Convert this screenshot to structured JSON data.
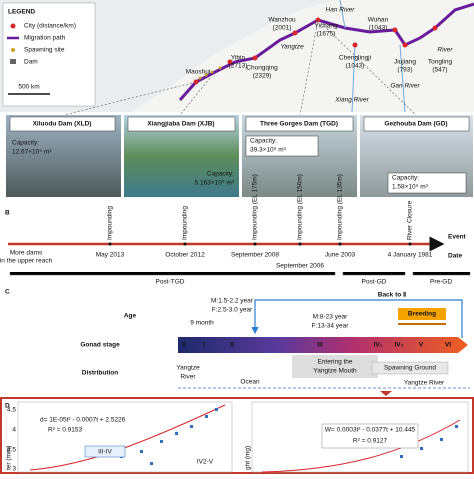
{
  "map": {
    "legend": {
      "title": "LEGEND",
      "items": [
        "City (distance/km)",
        "Migration path",
        "Spawning site",
        "Dam"
      ],
      "scale": "500 km"
    },
    "cities": [
      {
        "name": "Maoshui"
      },
      {
        "name": "Yibin",
        "distance": "(2713)"
      },
      {
        "name": "Chongqing",
        "distance": "(2329)"
      },
      {
        "name": "Wanzhou",
        "distance": "(2001)"
      },
      {
        "name": "Yichang",
        "distance": "(1675)"
      },
      {
        "name": "Wuhan",
        "distance": "(1043)"
      },
      {
        "name": "Chenglingji",
        "distance": "(1043)"
      },
      {
        "name": "Jiujiang",
        "distance": "(793)"
      },
      {
        "name": "Tongling",
        "distance": "(547)"
      }
    ],
    "rivers": [
      "Han River",
      "Yangtze",
      "Xiang River",
      "Gan River",
      "River"
    ]
  },
  "dams": [
    {
      "name": "Xiluodu Dam (XLD)",
      "capacity_title": "Capacity:",
      "capacity": "12.67×10⁹ m³"
    },
    {
      "name": "Xiangjiaba Dam (XJB)",
      "capacity_title": "Capacity:",
      "capacity": "5.163×10⁹ m³"
    },
    {
      "name": "Three Gorges Dam (TGD)",
      "capacity_title": "Capacity:",
      "capacity": "39.3×10⁹ m³"
    },
    {
      "name": "Gezhouba Dam (GD)",
      "capacity_title": "Capacity:",
      "capacity": "1.58×10⁹ m³"
    }
  ],
  "timeline": {
    "label": "B",
    "start": [
      "More dams",
      "in the upper reach"
    ],
    "event_axis": "Event",
    "date_axis": "Date",
    "events": [
      {
        "event": "Impounding",
        "date": "May 2013"
      },
      {
        "event": "Impounding",
        "date": "October 2012"
      },
      {
        "event": "Impounding (EL 175m)",
        "date": "September 2008"
      },
      {
        "event": "Impounding (EL 156m)",
        "date": "September 2006"
      },
      {
        "event": "Impounding (EL 135m)",
        "date": "June 2003"
      },
      {
        "event": "River Closure",
        "date": "4 January 1981"
      }
    ],
    "periods": [
      "Post-TGD",
      "Post-GD",
      "Pre-GD"
    ]
  },
  "life": {
    "label": "C",
    "back": "Back to Ⅱ",
    "age_title": "Age",
    "ages": [
      "M:1.5-2.2 year",
      "F:2.5-3.0 year",
      "9 month",
      "M:8-23 year",
      "F:13-34 year"
    ],
    "breeding": "Breeding",
    "gonad_title": "Gonad stage",
    "stages": [
      "0",
      "I",
      "II",
      "III",
      "IV₁",
      "IV₂",
      "V",
      "VI"
    ],
    "distribution_title": "Distribution",
    "river_start": [
      "Yangtze",
      "River"
    ],
    "ocean": "Ocean",
    "mouth": [
      "Entering the",
      "Yangtze Mouth"
    ],
    "spawning": "Spawning Ground",
    "river_end": "Yangtze River"
  },
  "growth": {
    "label": "D",
    "left": {
      "y_label": "ter (mm)",
      "yticks": [
        "4.5",
        "4",
        "3.5",
        "3"
      ],
      "equation": "d= 1E-05t² - 0.0007t + 2.5226",
      "r2": "R² = 0.9153",
      "stages": [
        "III-IV",
        "IV2-V"
      ]
    },
    "right": {
      "y_label": "ght (mg)",
      "equation": "W= 0.0003t² - 0.0377t + 10.445",
      "r2": "R² = 0.9127"
    }
  }
}
